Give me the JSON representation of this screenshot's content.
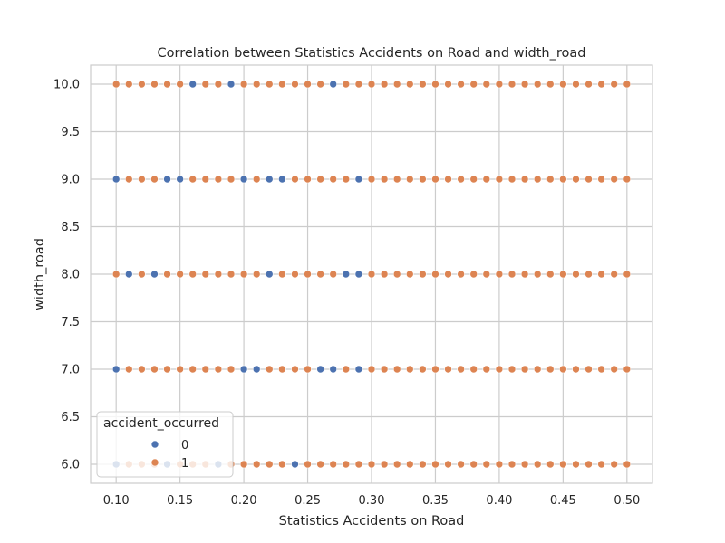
{
  "chart_data": {
    "type": "scatter",
    "title": "Correlation between Statistics Accidents on Road and width_road",
    "xlabel": "Statistics Accidents on Road",
    "ylabel": "width_road",
    "xlim": [
      0.08,
      0.52
    ],
    "ylim": [
      5.8,
      10.2
    ],
    "x_ticks": [
      0.1,
      0.15,
      0.2,
      0.25,
      0.3,
      0.35,
      0.4,
      0.45,
      0.5
    ],
    "x_tick_labels": [
      "0.10",
      "0.15",
      "0.20",
      "0.25",
      "0.30",
      "0.35",
      "0.40",
      "0.45",
      "0.50"
    ],
    "y_ticks": [
      6.0,
      6.5,
      7.0,
      7.5,
      8.0,
      8.5,
      9.0,
      9.5,
      10.0
    ],
    "y_tick_labels": [
      "6.0",
      "6.5",
      "7.0",
      "7.5",
      "8.0",
      "8.5",
      "9.0",
      "9.5",
      "10.0"
    ],
    "grid": true,
    "legend": {
      "title": "accident_occurred",
      "placement": "lower-left"
    },
    "series": [
      {
        "name": "0",
        "color": "#4c72b0",
        "points": [
          [
            0.16,
            10
          ],
          [
            0.19,
            10
          ],
          [
            0.27,
            10
          ],
          [
            0.1,
            9
          ],
          [
            0.14,
            9
          ],
          [
            0.15,
            9
          ],
          [
            0.2,
            9
          ],
          [
            0.22,
            9
          ],
          [
            0.23,
            9
          ],
          [
            0.29,
            9
          ],
          [
            0.11,
            8
          ],
          [
            0.13,
            8
          ],
          [
            0.22,
            8
          ],
          [
            0.28,
            8
          ],
          [
            0.29,
            8
          ],
          [
            0.1,
            7
          ],
          [
            0.2,
            7
          ],
          [
            0.21,
            7
          ],
          [
            0.26,
            7
          ],
          [
            0.27,
            7
          ],
          [
            0.29,
            7
          ],
          [
            0.1,
            6
          ],
          [
            0.14,
            6
          ],
          [
            0.18,
            6
          ],
          [
            0.24,
            6
          ]
        ]
      },
      {
        "name": "1",
        "color": "#dd8452",
        "x_grid": {
          "start": 0.1,
          "end": 0.5,
          "step": 0.01
        },
        "y_levels": [
          6,
          7,
          8,
          9,
          10
        ],
        "note_excluded": "all grid points except those listed in series 0"
      }
    ]
  }
}
